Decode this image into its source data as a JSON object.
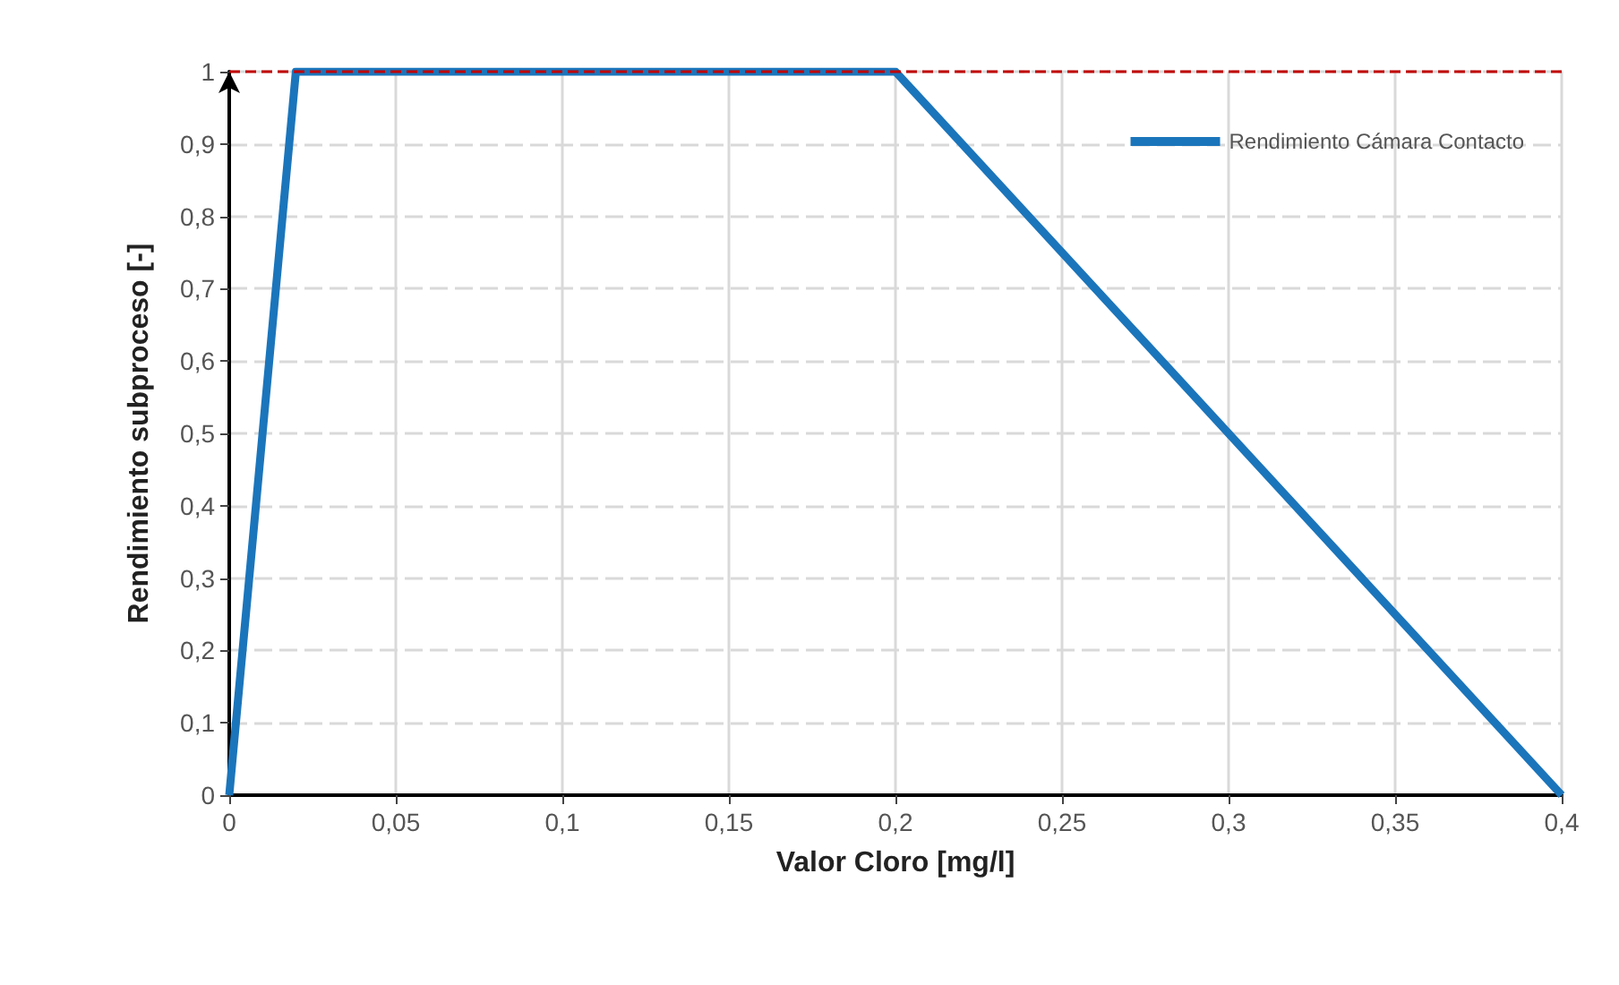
{
  "chart_data": {
    "type": "line",
    "xlabel": "Valor Cloro [mg/l]",
    "ylabel": "Rendimiento subproceso [-]",
    "x": [
      0,
      0.02,
      0.2,
      0.4
    ],
    "series": [
      {
        "name": "Rendimiento Cámara Contacto",
        "color": "#1b75bb",
        "values": [
          0,
          1,
          1,
          0
        ]
      }
    ],
    "xlim": [
      0,
      0.4
    ],
    "ylim": [
      0,
      1
    ],
    "xticks": [
      0,
      {
        "value": 0.05,
        "label": "0,05"
      },
      {
        "value": 0.1,
        "label": "0,1"
      },
      {
        "value": 0.15,
        "label": "0,15"
      },
      {
        "value": 0.2,
        "label": "0,2"
      },
      {
        "value": 0.25,
        "label": "0,25"
      },
      {
        "value": 0.3,
        "label": "0,3"
      },
      {
        "value": 0.35,
        "label": "0,35"
      },
      {
        "value": 0.4,
        "label": "0,4"
      }
    ],
    "yticks": [
      0,
      {
        "value": 0.1,
        "label": "0,1"
      },
      {
        "value": 0.2,
        "label": "0,2"
      },
      {
        "value": 0.3,
        "label": "0,3"
      },
      {
        "value": 0.4,
        "label": "0,4"
      },
      {
        "value": 0.5,
        "label": "0,5"
      },
      {
        "value": 0.6,
        "label": "0,6"
      },
      {
        "value": 0.7,
        "label": "0,7"
      },
      {
        "value": 0.8,
        "label": "0,8"
      },
      {
        "value": 0.9,
        "label": "0,9"
      },
      1
    ],
    "ref_lines": [
      {
        "axis": "y",
        "value": 1,
        "color": "#c00000",
        "line_style": "dashed"
      }
    ],
    "grid": true,
    "legend": "top right",
    "marker": "none",
    "line_style": "solid"
  }
}
